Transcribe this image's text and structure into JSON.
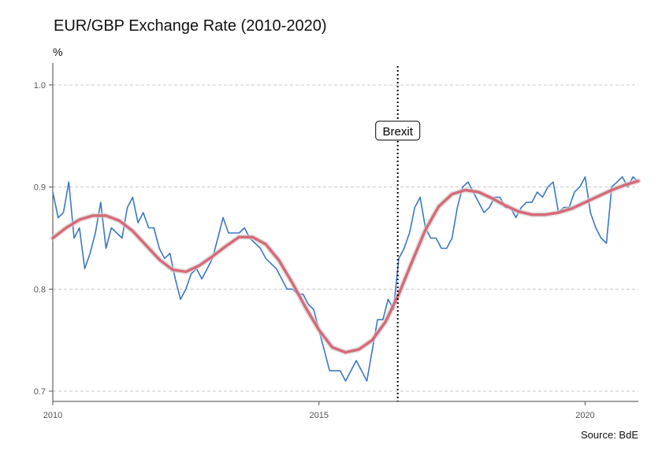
{
  "chart_data": {
    "type": "line",
    "title": "EUR/GBP Exchange Rate (2010-2020)",
    "ylabel": "%",
    "source": "Source: BdE",
    "xlim": [
      2010,
      2021
    ],
    "ylim": [
      0.69,
      1.02
    ],
    "x_ticks": [
      2010,
      2015,
      2020
    ],
    "y_ticks": [
      0.7,
      0.8,
      0.9,
      1.0
    ],
    "y_tick_labels": [
      "0.7",
      "0.8",
      "0.9",
      "1.0"
    ],
    "grid": "horizontal-dashed",
    "annotation": {
      "label": "Brexit",
      "x": 2016.48
    },
    "series": [
      {
        "color": "#3b78c3",
        "x": [
          2010.0,
          2010.1,
          2010.2,
          2010.3,
          2010.4,
          2010.5,
          2010.6,
          2010.7,
          2010.8,
          2010.9,
          2011.0,
          2011.1,
          2011.2,
          2011.3,
          2011.4,
          2011.5,
          2011.6,
          2011.7,
          2011.8,
          2011.9,
          2012.0,
          2012.1,
          2012.2,
          2012.3,
          2012.4,
          2012.5,
          2012.6,
          2012.7,
          2012.8,
          2012.9,
          2013.0,
          2013.1,
          2013.2,
          2013.3,
          2013.4,
          2013.5,
          2013.6,
          2013.7,
          2013.8,
          2013.9,
          2014.0,
          2014.1,
          2014.2,
          2014.3,
          2014.4,
          2014.5,
          2014.6,
          2014.7,
          2014.8,
          2014.9,
          2015.0,
          2015.1,
          2015.2,
          2015.3,
          2015.4,
          2015.5,
          2015.6,
          2015.7,
          2015.8,
          2015.9,
          2016.0,
          2016.1,
          2016.2,
          2016.3,
          2016.4,
          2016.5,
          2016.6,
          2016.7,
          2016.8,
          2016.9,
          2017.0,
          2017.1,
          2017.2,
          2017.3,
          2017.4,
          2017.5,
          2017.6,
          2017.7,
          2017.8,
          2017.9,
          2018.0,
          2018.1,
          2018.2,
          2018.3,
          2018.4,
          2018.5,
          2018.6,
          2018.7,
          2018.8,
          2018.9,
          2019.0,
          2019.1,
          2019.2,
          2019.3,
          2019.4,
          2019.5,
          2019.6,
          2019.7,
          2019.8,
          2019.9,
          2020.0,
          2020.1,
          2020.2,
          2020.3,
          2020.4,
          2020.5,
          2020.6,
          2020.7,
          2020.8,
          2020.9,
          2021.0
        ],
        "values": [
          0.895,
          0.87,
          0.875,
          0.905,
          0.85,
          0.86,
          0.82,
          0.835,
          0.855,
          0.885,
          0.84,
          0.86,
          0.855,
          0.85,
          0.88,
          0.89,
          0.865,
          0.875,
          0.86,
          0.86,
          0.84,
          0.83,
          0.835,
          0.81,
          0.79,
          0.8,
          0.815,
          0.82,
          0.81,
          0.82,
          0.83,
          0.85,
          0.87,
          0.855,
          0.855,
          0.855,
          0.86,
          0.85,
          0.845,
          0.84,
          0.83,
          0.825,
          0.82,
          0.81,
          0.8,
          0.8,
          0.795,
          0.795,
          0.785,
          0.78,
          0.76,
          0.74,
          0.72,
          0.72,
          0.72,
          0.71,
          0.72,
          0.73,
          0.72,
          0.71,
          0.74,
          0.77,
          0.77,
          0.79,
          0.78,
          0.83,
          0.84,
          0.855,
          0.88,
          0.89,
          0.86,
          0.85,
          0.85,
          0.84,
          0.84,
          0.85,
          0.88,
          0.9,
          0.905,
          0.895,
          0.885,
          0.875,
          0.88,
          0.89,
          0.89,
          0.88,
          0.88,
          0.87,
          0.88,
          0.885,
          0.885,
          0.895,
          0.89,
          0.9,
          0.905,
          0.875,
          0.88,
          0.88,
          0.895,
          0.9,
          0.91,
          0.875,
          0.86,
          0.85,
          0.845,
          0.9,
          0.905,
          0.91,
          0.9,
          0.91,
          0.905
        ]
      },
      {
        "color": "#d66a78",
        "x": [
          2010.0,
          2010.25,
          2010.5,
          2010.75,
          2011.0,
          2011.25,
          2011.5,
          2011.75,
          2012.0,
          2012.25,
          2012.5,
          2012.75,
          2013.0,
          2013.25,
          2013.5,
          2013.75,
          2014.0,
          2014.25,
          2014.5,
          2014.75,
          2015.0,
          2015.25,
          2015.5,
          2015.75,
          2016.0,
          2016.25,
          2016.5,
          2016.75,
          2017.0,
          2017.25,
          2017.5,
          2017.75,
          2018.0,
          2018.25,
          2018.5,
          2018.75,
          2019.0,
          2019.25,
          2019.5,
          2019.75,
          2020.0,
          2020.25,
          2020.5,
          2020.75,
          2021.0
        ],
        "values": [
          0.85,
          0.86,
          0.868,
          0.872,
          0.872,
          0.867,
          0.857,
          0.843,
          0.829,
          0.819,
          0.817,
          0.823,
          0.832,
          0.842,
          0.851,
          0.851,
          0.844,
          0.828,
          0.806,
          0.782,
          0.76,
          0.743,
          0.738,
          0.741,
          0.75,
          0.768,
          0.795,
          0.827,
          0.858,
          0.881,
          0.893,
          0.897,
          0.895,
          0.889,
          0.882,
          0.876,
          0.873,
          0.873,
          0.875,
          0.879,
          0.885,
          0.891,
          0.897,
          0.902,
          0.906
        ]
      }
    ]
  }
}
